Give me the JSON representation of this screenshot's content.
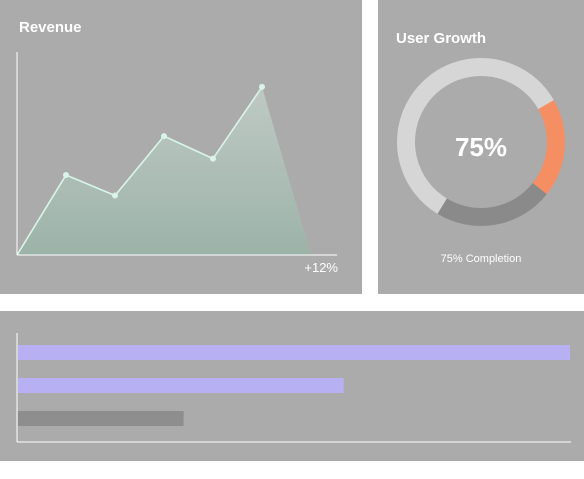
{
  "colors": {
    "panel_bg": "#ababab",
    "line": "#d8f5e8",
    "area_top": "#bfc9c4",
    "area_bottom": "#9cb3a8",
    "axis": "#ffffff",
    "ring_track": "#d6d6d6",
    "ring_dark": "#8a8a8a",
    "ring_accent": "#f58e62",
    "bar_purple": "#b7b0f2",
    "bar_gray": "#8e8e8e"
  },
  "revenue": {
    "title": "Revenue",
    "change": "+12%"
  },
  "user_growth": {
    "title": "User Growth",
    "center_value": "75%",
    "caption": "75% Completion"
  },
  "chart_data": [
    {
      "type": "area",
      "title": "Revenue",
      "annotation": "+12%",
      "x": [
        0,
        1,
        2,
        3,
        4,
        5,
        6
      ],
      "values": [
        0,
        39,
        29,
        58,
        47,
        82,
        0
      ],
      "ylim": [
        0,
        100
      ],
      "grid": false
    },
    {
      "type": "pie",
      "title": "User Growth",
      "center_label": "75%",
      "caption": "75% Completion",
      "slices": [
        {
          "value": 19,
          "color": "#f58e62"
        },
        {
          "value": 23,
          "color": "#8a8a8a"
        },
        {
          "value": 58,
          "color": "#d6d6d6"
        }
      ]
    },
    {
      "type": "bar",
      "orientation": "horizontal",
      "values": [
        100,
        59,
        30
      ],
      "colors": [
        "#b7b0f2",
        "#b7b0f2",
        "#8e8e8e"
      ],
      "xlim": [
        0,
        100
      ]
    }
  ]
}
